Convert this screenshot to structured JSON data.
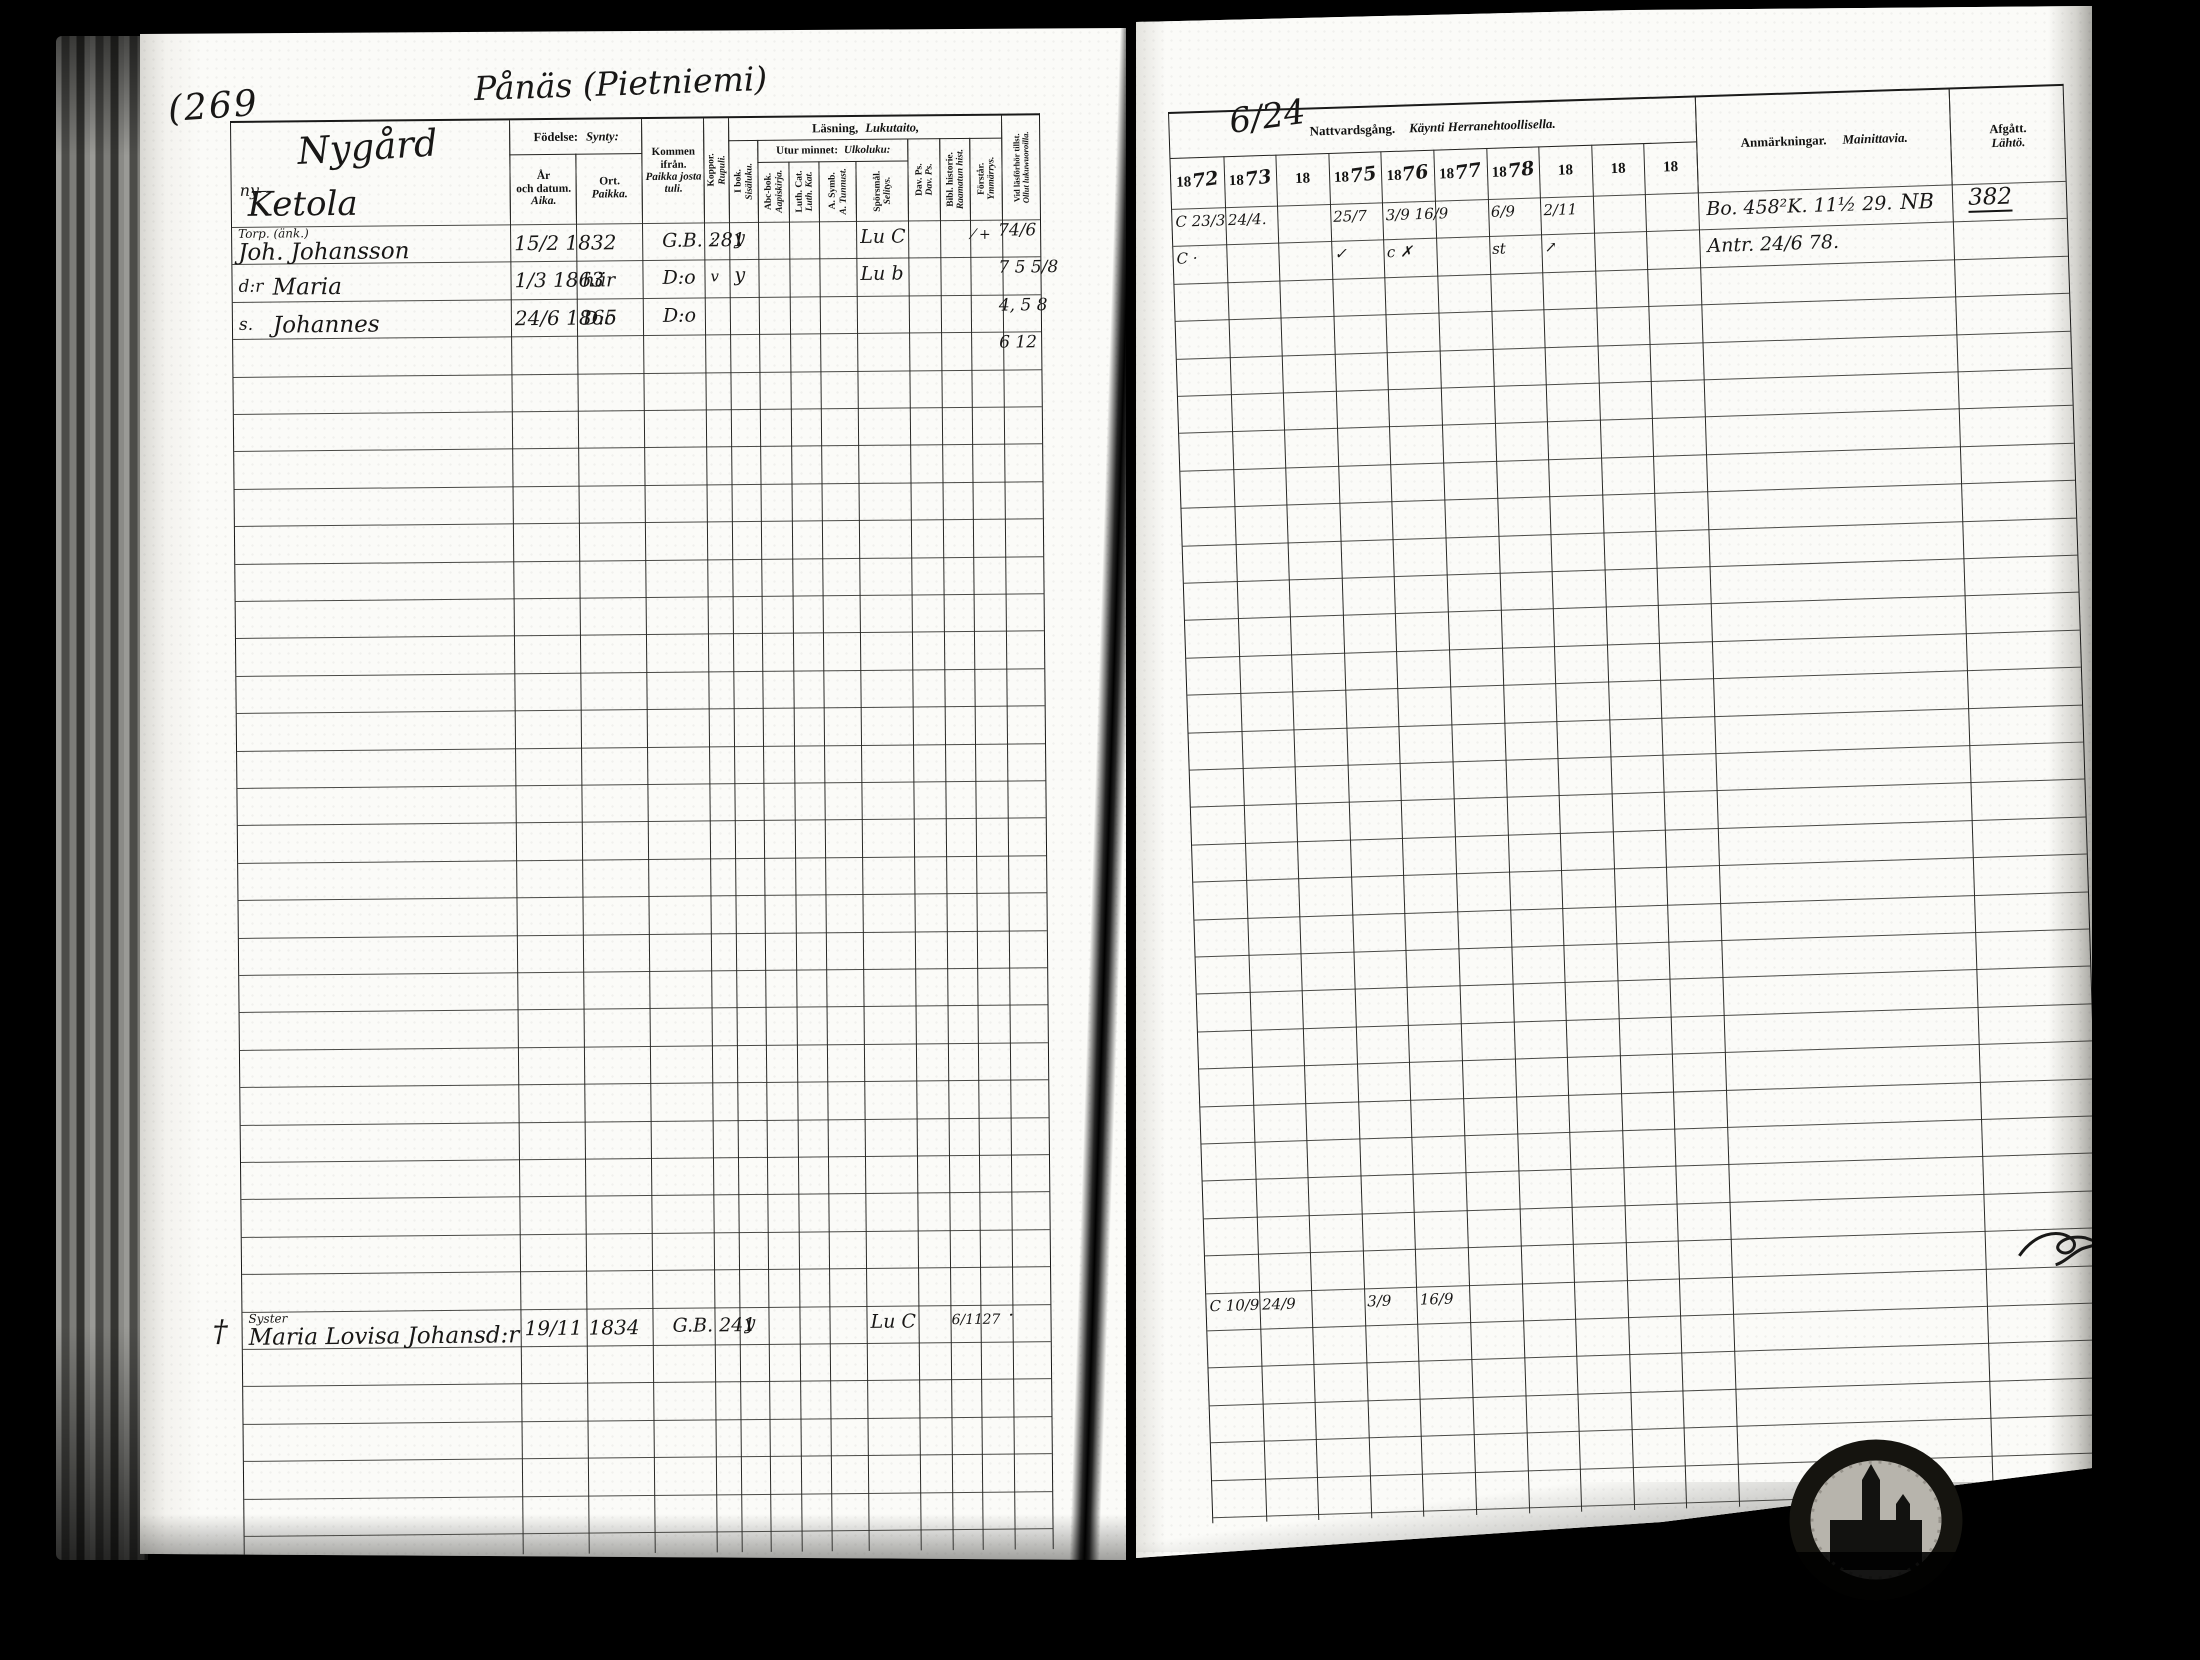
{
  "document": {
    "page_number": "(269",
    "place_title": "Pånäs (Pietniemi)",
    "household": {
      "name1": "Nygård",
      "annotation": "ny–",
      "name2": "Ketola"
    }
  },
  "left_table": {
    "birth_group": {
      "sv": "Födelse:",
      "fi": "Synty:"
    },
    "reading_group": {
      "sv": "Läsning,",
      "fi": "Lukutaito,"
    },
    "memory_group": {
      "sv": "Utur minnet:",
      "fi": "Ulkoluku:"
    },
    "cols": {
      "birth_date": {
        "sv1": "År",
        "sv2": "och datum.",
        "fi": "Aika."
      },
      "birth_place": {
        "sv": "Ort.",
        "fi": "Paikka."
      },
      "come_from": {
        "sv": "Kommen ifrån.",
        "fi": "Paikka josta tuli."
      },
      "smallpox": {
        "sv": "Koppor.",
        "fi": "Rupuli."
      },
      "in_book": {
        "sv": "I bok.",
        "fi": "Sisäluku."
      },
      "abc": {
        "sv": "Abc-bok.",
        "fi": "Aapiskirja."
      },
      "luth_cat": {
        "sv": "Luth. Cat.",
        "fi": "Luth. Kat."
      },
      "symb": {
        "sv": "A. Symb.",
        "fi": "A. Tunnust."
      },
      "sporsmal": {
        "sv": "Spörsmål.",
        "fi": "Selitys."
      },
      "dav_ps": {
        "sv": "Dav. Ps.",
        "fi": "Dav. Ps."
      },
      "bibl_hist": {
        "sv": "Bibl. historie.",
        "fi": "Raamatun hist."
      },
      "forstar": {
        "sv": "Förstår.",
        "fi": "Ymmärrys."
      },
      "vid_lasforhor": {
        "sv": "Vid läsförhör tillst.",
        "fi": "Ollut lukuwuoroilla."
      }
    }
  },
  "right_table": {
    "communion_group": {
      "sv": "Nattvardsgång.",
      "fi": "Käynti Herranehtoollisella.",
      "overlay": "6/24"
    },
    "years": [
      {
        "printed": "18",
        "written": "72"
      },
      {
        "printed": "18",
        "written": "73"
      },
      {
        "printed": "18",
        "written": ""
      },
      {
        "printed": "18",
        "written": "75"
      },
      {
        "printed": "18",
        "written": "76"
      },
      {
        "printed": "18",
        "written": "77"
      },
      {
        "printed": "18",
        "written": "78"
      },
      {
        "printed": "18",
        "written": ""
      },
      {
        "printed": "18",
        "written": ""
      },
      {
        "printed": "18",
        "written": ""
      }
    ],
    "remarks": {
      "sv": "Anmärkningar.",
      "fi": "Mainittavia."
    },
    "departed": {
      "sv": "Afgått.",
      "fi": "Lähtö."
    }
  },
  "entries": [
    {
      "row": 0,
      "occupation": "Torp. (änk.)",
      "name": "Joh. Johansson",
      "birth": "15/2 1832",
      "from": "G.B. 281",
      "koppor": ":",
      "ibok": "y",
      "spors": "Lu C",
      "forstar": "⁄ +",
      "vidlas": "74/6",
      "communion": [
        "C 23/3",
        "24/4.",
        "",
        "25/7",
        "3/9 16/9",
        "",
        "6/9",
        "2/11",
        "",
        ""
      ],
      "remark": "Bo. 458²K. 11½ 29.",
      "remark_note": "NB",
      "afgatt": "382"
    },
    {
      "row": 1,
      "prefix": "d:r",
      "name": "Maria",
      "birth": "1/3 1863",
      "ort": "här",
      "from": "D:o",
      "koppor": "v",
      "ibok": "y",
      "spors": "Lu b",
      "vidlas": "7  5 5/8",
      "communion": [
        "C ·",
        "",
        "",
        "✓",
        "c ✗",
        "",
        "st",
        "↗",
        "",
        ""
      ],
      "remark": "Antr. 24/6 78."
    },
    {
      "row": 2,
      "prefix": "s.",
      "name": "Johannes",
      "birth": "24/6 1865",
      "ort": "D:o",
      "from": "D:o",
      "vidlas": "4, 5 8"
    },
    {
      "row": 3,
      "vidlas": "6 12"
    },
    {
      "row": 29,
      "margin": "†",
      "occupation": "Syster",
      "name": "Maria Lovisa Johansd:r",
      "birth": "19/11 1834",
      "from": "G.B. 241",
      "ibok": "y",
      "spors": "Lu C",
      "bibl": "6/11",
      "forstar": "27",
      "vidlas": "·",
      "communion": [
        "C 10/9",
        "24/9",
        "",
        "3/9",
        "16/9",
        "",
        "",
        "",
        "",
        ""
      ]
    }
  ]
}
